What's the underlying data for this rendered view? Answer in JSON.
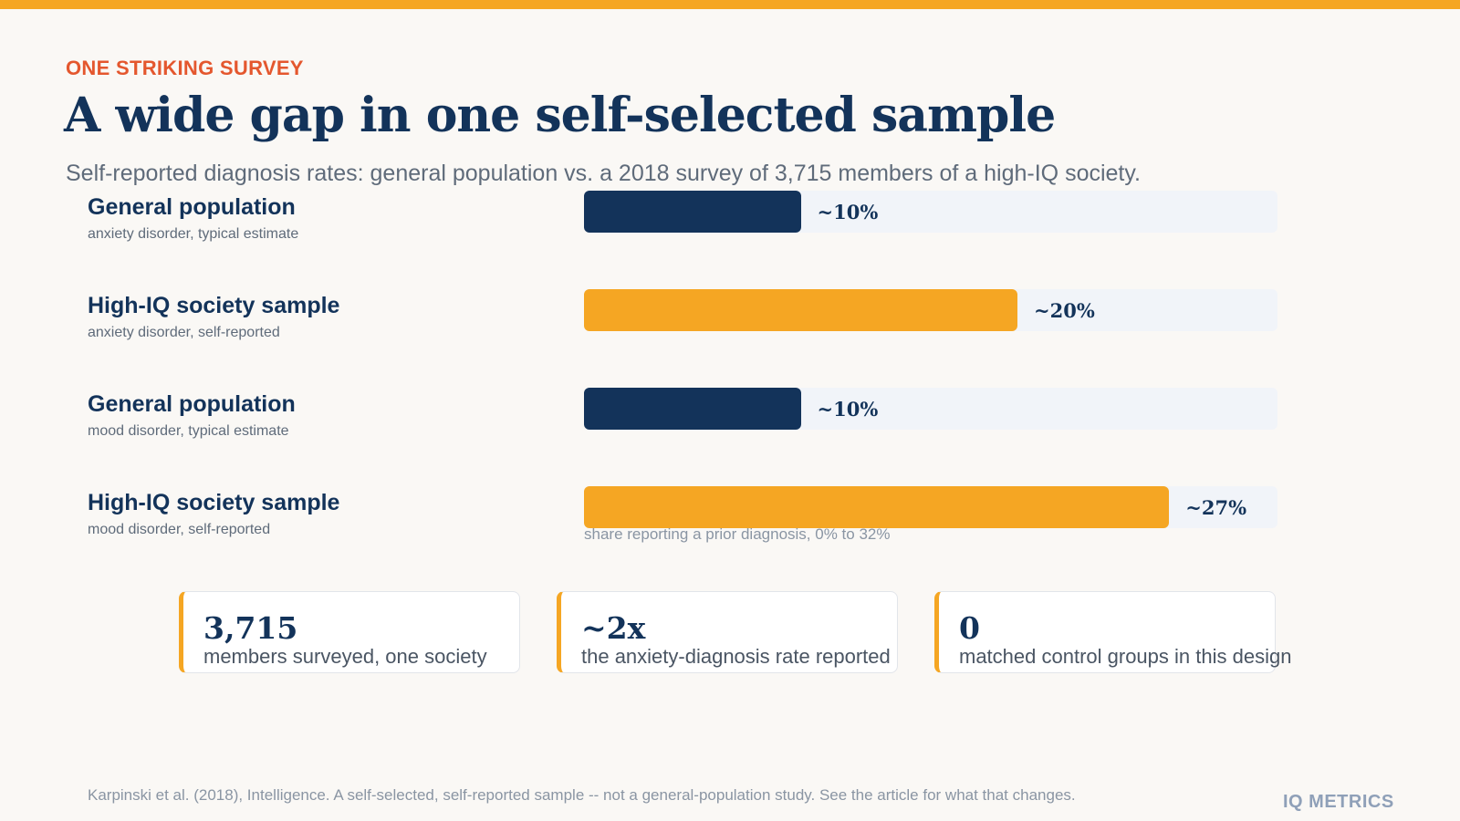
{
  "header": {
    "eyebrow": "ONE STRIKING SURVEY",
    "title": "A wide gap in one self-selected sample",
    "subtitle": "Self-reported diagnosis rates: general population vs. a 2018 survey of 3,715 members of a high-IQ society."
  },
  "chart_data": {
    "type": "bar",
    "orientation": "horizontal",
    "categories": [
      "General population",
      "High-IQ society sample",
      "General population",
      "High-IQ society sample"
    ],
    "subtitles": [
      "anxiety disorder, typical estimate",
      "anxiety disorder, self-reported",
      "mood disorder, typical estimate",
      "mood disorder, self-reported"
    ],
    "values": [
      10,
      20,
      10,
      27
    ],
    "value_labels": [
      "~10%",
      "~20%",
      "~10%",
      "~27%"
    ],
    "xlim": [
      0,
      32
    ],
    "axis_note": "share reporting a prior diagnosis, 0% to 32%",
    "grid": false,
    "colors": {
      "general": "#13335a",
      "high_iq": "#f5a623",
      "track": "#f1f4f9"
    }
  },
  "stats": [
    {
      "value": "3,715",
      "label": "members surveyed, one society"
    },
    {
      "value": "~2x",
      "label": "the anxiety-diagnosis rate reported"
    },
    {
      "value": "0",
      "label": "matched control groups in this design"
    }
  ],
  "footer": {
    "source": "Karpinski et al. (2018), Intelligence. A self-selected, self-reported sample -- not a general-population study. See the article for what that changes.",
    "brand": "IQ METRICS"
  }
}
